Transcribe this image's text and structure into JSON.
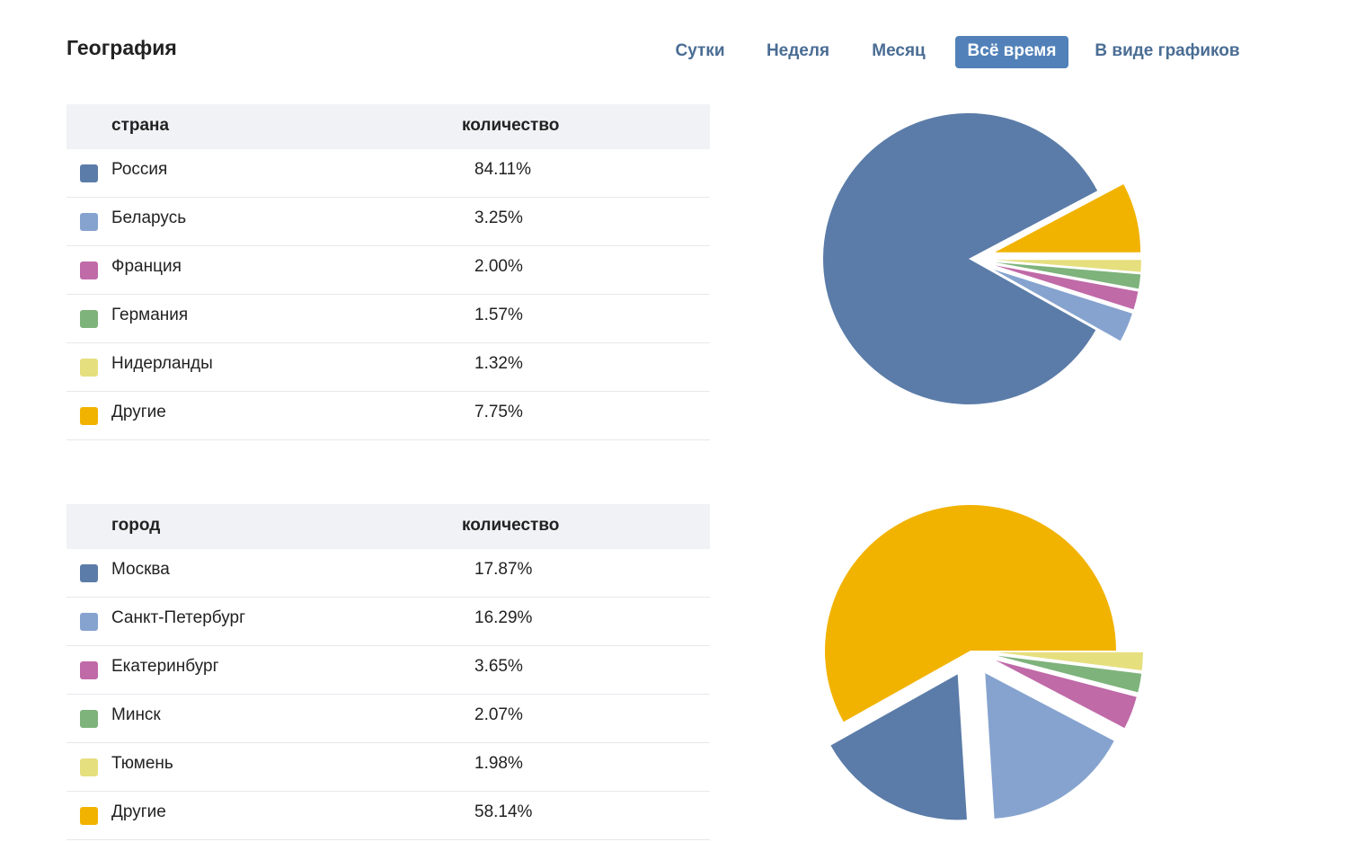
{
  "page": {
    "title": "География"
  },
  "tabs": {
    "day": "Сутки",
    "week": "Неделя",
    "month": "Месяц",
    "all": "Всё время",
    "graphs": "В виде графиков",
    "active": "all"
  },
  "colors": {
    "blue": "#5b7ca8",
    "light_blue": "#86a3cf",
    "pink": "#c06aa8",
    "green": "#7eb37c",
    "yellow": "#e6df7e",
    "orange": "#f1b300",
    "active_tab": "#5181b8",
    "tab_text": "#4a6d94"
  },
  "countries": {
    "header_name": "страна",
    "header_count": "количество",
    "rows": [
      {
        "name": "Россия",
        "value": "84.11%",
        "color": "#5b7ca8"
      },
      {
        "name": "Беларусь",
        "value": "3.25%",
        "color": "#86a3cf"
      },
      {
        "name": "Франция",
        "value": "2.00%",
        "color": "#c06aa8"
      },
      {
        "name": "Германия",
        "value": "1.57%",
        "color": "#7eb37c"
      },
      {
        "name": "Нидерланды",
        "value": "1.32%",
        "color": "#e6df7e"
      },
      {
        "name": "Другие",
        "value": "7.75%",
        "color": "#f1b300"
      }
    ]
  },
  "cities": {
    "header_name": "город",
    "header_count": "количество",
    "rows": [
      {
        "name": "Москва",
        "value": "17.87%",
        "color": "#5b7ca8"
      },
      {
        "name": "Санкт-Петербург",
        "value": "16.29%",
        "color": "#86a3cf"
      },
      {
        "name": "Екатеринбург",
        "value": "3.65%",
        "color": "#c06aa8"
      },
      {
        "name": "Минск",
        "value": "2.07%",
        "color": "#7eb37c"
      },
      {
        "name": "Тюмень",
        "value": "1.98%",
        "color": "#e6df7e"
      },
      {
        "name": "Другие",
        "value": "58.14%",
        "color": "#f1b300"
      }
    ]
  },
  "chart_data": [
    {
      "type": "pie",
      "categories": [
        "Россия",
        "Беларусь",
        "Франция",
        "Германия",
        "Нидерланды",
        "Другие"
      ],
      "values": [
        84.11,
        3.25,
        2.0,
        1.57,
        1.32,
        7.75
      ],
      "colors": [
        "#5b7ca8",
        "#86a3cf",
        "#c06aa8",
        "#7eb37c",
        "#e6df7e",
        "#f1b300"
      ]
    },
    {
      "type": "pie",
      "categories": [
        "Москва",
        "Санкт-Петербург",
        "Екатеринбург",
        "Минск",
        "Тюмень",
        "Другие"
      ],
      "values": [
        17.87,
        16.29,
        3.65,
        2.07,
        1.98,
        58.14
      ],
      "colors": [
        "#5b7ca8",
        "#86a3cf",
        "#c06aa8",
        "#7eb37c",
        "#e6df7e",
        "#f1b300"
      ]
    }
  ]
}
